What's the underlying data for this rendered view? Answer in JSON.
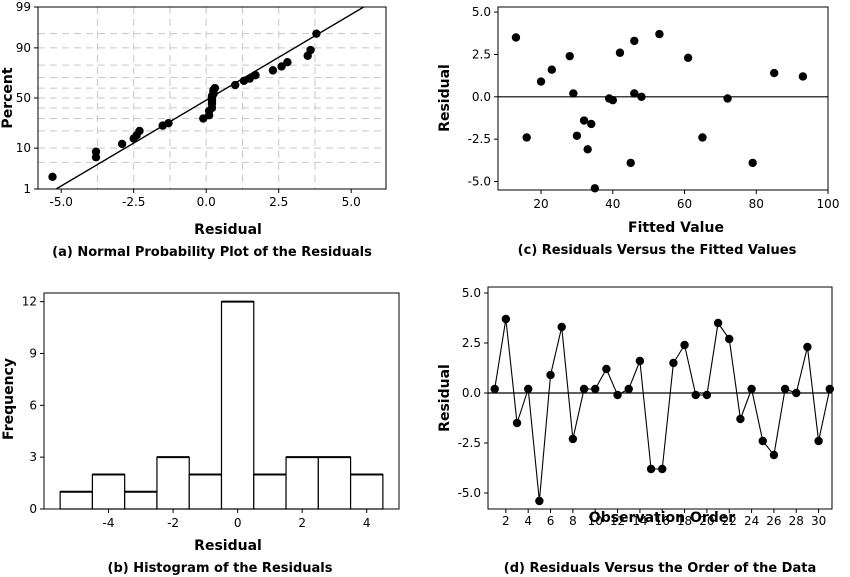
{
  "chart_data": [
    {
      "id": "a",
      "type": "scatter",
      "caption": "(a) Normal Probability Plot of the Residuals",
      "xlabel": "Residual",
      "ylabel": "Percent",
      "xticks": [
        -5.0,
        -2.5,
        0.0,
        2.5,
        5.0
      ],
      "xtick_labels": [
        "-5.0",
        "-2.5",
        "0.0",
        "2.5",
        "5.0"
      ],
      "yticks": [
        1,
        10,
        50,
        90,
        99
      ],
      "xlim": [
        -5.8,
        6.2
      ],
      "ylim": [
        1,
        99
      ],
      "grid": true,
      "series": [
        {
          "points": [
            [
              -5.3,
              2.2
            ],
            [
              -3.8,
              6.5
            ],
            [
              -3.8,
              8.5
            ],
            [
              -2.9,
              12
            ],
            [
              -2.5,
              15
            ],
            [
              -2.4,
              17
            ],
            [
              -2.3,
              20
            ],
            [
              -1.5,
              24
            ],
            [
              -1.3,
              26
            ],
            [
              -0.1,
              30
            ],
            [
              0.1,
              33
            ],
            [
              0.1,
              37
            ],
            [
              0.2,
              40
            ],
            [
              0.2,
              44
            ],
            [
              0.2,
              46
            ],
            [
              0.2,
              48
            ],
            [
              0.2,
              50
            ],
            [
              0.2,
              52
            ],
            [
              0.25,
              54
            ],
            [
              0.25,
              56
            ],
            [
              0.25,
              58
            ],
            [
              0.3,
              60
            ],
            [
              1.0,
              63
            ],
            [
              1.3,
              67
            ],
            [
              1.5,
              69
            ],
            [
              1.7,
              72
            ],
            [
              2.3,
              76
            ],
            [
              2.6,
              79
            ],
            [
              2.8,
              82
            ],
            [
              3.5,
              86
            ],
            [
              3.6,
              89
            ],
            [
              3.8,
              95
            ]
          ],
          "fit_line": [
            [
              -5.6,
              0.6
            ],
            [
              6.0,
              99.5
            ]
          ]
        }
      ]
    },
    {
      "id": "b",
      "type": "bar",
      "caption": "(b) Histogram of the Residuals",
      "xlabel": "Residual",
      "ylabel": "Frequency",
      "bin_edges": [
        -5.5,
        -4.5,
        -3.5,
        -2.5,
        -1.5,
        -0.5,
        0.5,
        1.5,
        2.5,
        3.5,
        4.5
      ],
      "values": [
        1,
        2,
        1,
        3,
        2,
        12,
        2,
        3,
        3,
        2
      ],
      "xticks": [
        -4,
        -2,
        0,
        2,
        4
      ],
      "yticks": [
        0,
        3,
        6,
        9,
        12
      ],
      "xlim": [
        -6.0,
        5.0
      ],
      "ylim": [
        0,
        12.5
      ]
    },
    {
      "id": "c",
      "type": "scatter",
      "caption": "(c) Residuals Versus the Fitted Values",
      "xlabel": "Fitted Value",
      "ylabel": "Residual",
      "xticks": [
        20,
        40,
        60,
        80,
        100
      ],
      "yticks": [
        -5.0,
        -2.5,
        0.0,
        2.5,
        5.0
      ],
      "ytick_labels": [
        "-5.0",
        "-2.5",
        "0.0",
        "2.5",
        "5.0"
      ],
      "xlim": [
        8,
        100
      ],
      "ylim": [
        -5.5,
        5.3
      ],
      "reference_line": 0,
      "series": [
        {
          "points": [
            [
              13,
              3.5
            ],
            [
              16,
              -2.4
            ],
            [
              20,
              0.9
            ],
            [
              23,
              1.6
            ],
            [
              28,
              2.4
            ],
            [
              29,
              0.2
            ],
            [
              30,
              -2.3
            ],
            [
              32,
              -1.4
            ],
            [
              33,
              -3.1
            ],
            [
              34,
              -1.6
            ],
            [
              35,
              -5.4
            ],
            [
              39,
              -0.1
            ],
            [
              40,
              -0.2
            ],
            [
              42,
              2.6
            ],
            [
              45,
              -3.9
            ],
            [
              46,
              3.3
            ],
            [
              46,
              0.2
            ],
            [
              48,
              0.0
            ],
            [
              53,
              3.7
            ],
            [
              61,
              2.3
            ],
            [
              65,
              -2.4
            ],
            [
              72,
              -0.1
            ],
            [
              79,
              -3.9
            ],
            [
              85,
              1.4
            ],
            [
              93,
              1.2
            ]
          ]
        }
      ]
    },
    {
      "id": "d",
      "type": "line",
      "caption": "(d) Residuals Versus the Order of the Data",
      "xlabel": "Observation Order",
      "ylabel": "Residual",
      "xticks": [
        2,
        4,
        6,
        8,
        10,
        12,
        14,
        16,
        18,
        20,
        22,
        24,
        26,
        28,
        30
      ],
      "yticks": [
        -5.0,
        -2.5,
        0.0,
        2.5,
        5.0
      ],
      "ytick_labels": [
        "-5.0",
        "-2.5",
        "0.0",
        "2.5",
        "5.0"
      ],
      "xlim": [
        0.4,
        31.2
      ],
      "ylim": [
        -5.8,
        5.3
      ],
      "reference_line": 0,
      "x": [
        1,
        2,
        3,
        4,
        5,
        6,
        7,
        8,
        9,
        10,
        11,
        12,
        13,
        14,
        15,
        16,
        17,
        18,
        19,
        20,
        21,
        22,
        23,
        24,
        25,
        26,
        27,
        28,
        29,
        30,
        31
      ],
      "values": [
        0.2,
        3.7,
        -1.5,
        0.2,
        -5.4,
        0.9,
        3.3,
        -2.3,
        0.2,
        0.2,
        1.2,
        -0.1,
        0.2,
        1.6,
        -3.8,
        -3.8,
        1.5,
        2.4,
        -0.1,
        -0.1,
        3.5,
        2.7,
        -1.3,
        0.2,
        -2.4,
        -3.1,
        0.2,
        0.0,
        2.3,
        -2.4,
        0.2
      ]
    }
  ]
}
